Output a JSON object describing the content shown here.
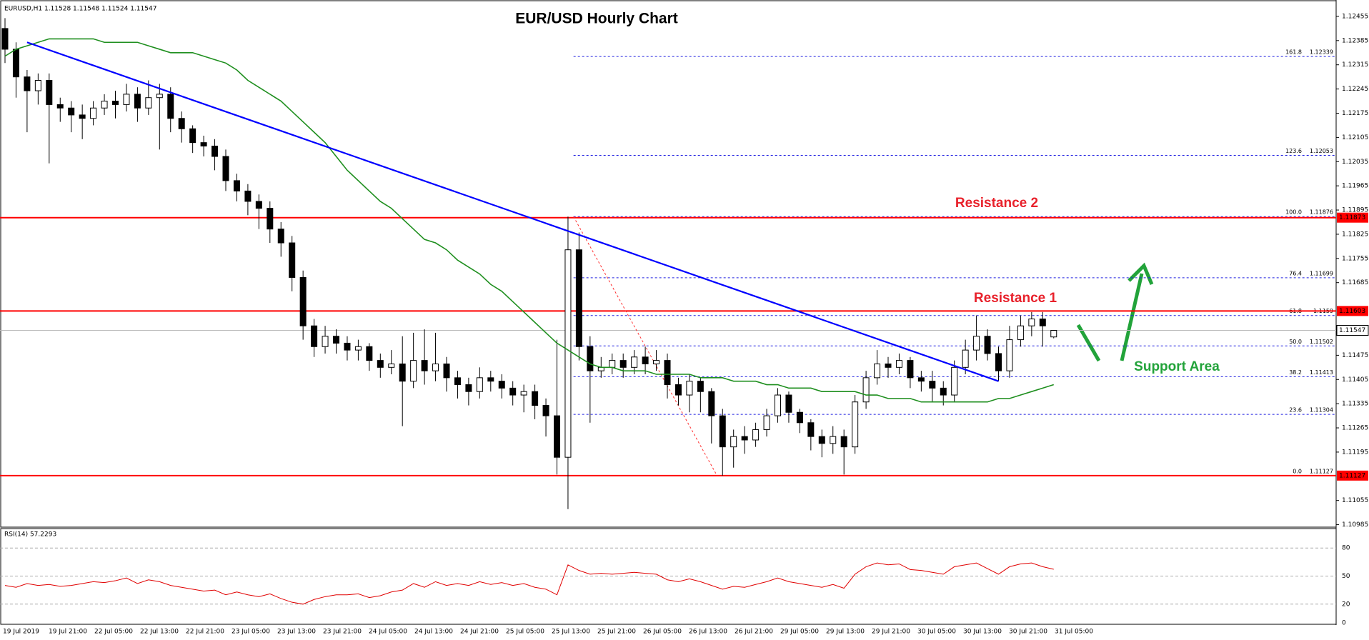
{
  "chart_data": {
    "type": "candlestick",
    "title": "EUR/USD Hourly Chart",
    "header": "EURUSD,H1  1.11528 1.11548 1.11524 1.11547",
    "ylim": [
      1.1098,
      1.1249
    ],
    "yticks": [
      1.12455,
      1.12385,
      1.12315,
      1.12245,
      1.12175,
      1.12105,
      1.12035,
      1.11965,
      1.11895,
      1.11825,
      1.11755,
      1.11685,
      1.11475,
      1.11405,
      1.11335,
      1.11265,
      1.11195,
      1.11055,
      1.10985
    ],
    "x_labels": [
      "19 Jul 2019",
      "19 Jul 21:00",
      "22 Jul 05:00",
      "22 Jul 13:00",
      "22 Jul 21:00",
      "23 Jul 05:00",
      "23 Jul 13:00",
      "23 Jul 21:00",
      "24 Jul 05:00",
      "24 Jul 13:00",
      "24 Jul 21:00",
      "25 Jul 05:00",
      "25 Jul 13:00",
      "25 Jul 21:00",
      "26 Jul 05:00",
      "26 Jul 13:00",
      "26 Jul 21:00",
      "29 Jul 05:00",
      "29 Jul 13:00",
      "29 Jul 21:00",
      "30 Jul 05:00",
      "30 Jul 13:00",
      "30 Jul 21:00",
      "31 Jul 05:00"
    ],
    "candles": [
      [
        1.1242,
        1.1245,
        1.1232,
        1.1236
      ],
      [
        1.1236,
        1.1238,
        1.1222,
        1.1228
      ],
      [
        1.1228,
        1.123,
        1.1212,
        1.1224
      ],
      [
        1.1224,
        1.1229,
        1.122,
        1.1227
      ],
      [
        1.1227,
        1.1229,
        1.1203,
        1.122
      ],
      [
        1.122,
        1.1222,
        1.1215,
        1.1219
      ],
      [
        1.1219,
        1.1221,
        1.1212,
        1.1217
      ],
      [
        1.1217,
        1.122,
        1.121,
        1.1216
      ],
      [
        1.1216,
        1.1221,
        1.1214,
        1.1219
      ],
      [
        1.1219,
        1.1223,
        1.1217,
        1.1221
      ],
      [
        1.1221,
        1.1224,
        1.1216,
        1.122
      ],
      [
        1.122,
        1.1226,
        1.1218,
        1.1223
      ],
      [
        1.1223,
        1.1225,
        1.1215,
        1.1219
      ],
      [
        1.1219,
        1.1227,
        1.1217,
        1.1222
      ],
      [
        1.1222,
        1.1226,
        1.1207,
        1.1223
      ],
      [
        1.1223,
        1.1225,
        1.1212,
        1.1216
      ],
      [
        1.1216,
        1.1218,
        1.1209,
        1.1213
      ],
      [
        1.1213,
        1.1214,
        1.1206,
        1.1209
      ],
      [
        1.1209,
        1.1211,
        1.1205,
        1.1208
      ],
      [
        1.1208,
        1.121,
        1.1201,
        1.1205
      ],
      [
        1.1205,
        1.1207,
        1.1195,
        1.1198
      ],
      [
        1.1198,
        1.12,
        1.1192,
        1.1195
      ],
      [
        1.1195,
        1.1197,
        1.1188,
        1.1192
      ],
      [
        1.1192,
        1.1194,
        1.1184,
        1.119
      ],
      [
        1.119,
        1.1192,
        1.118,
        1.1184
      ],
      [
        1.1184,
        1.1186,
        1.1176,
        1.118
      ],
      [
        1.118,
        1.1182,
        1.1166,
        1.117
      ],
      [
        1.117,
        1.1172,
        1.1152,
        1.1156
      ],
      [
        1.1156,
        1.1158,
        1.1147,
        1.115
      ],
      [
        1.115,
        1.1156,
        1.1148,
        1.1153
      ],
      [
        1.1153,
        1.1155,
        1.1148,
        1.1151
      ],
      [
        1.1151,
        1.1153,
        1.1146,
        1.1149
      ],
      [
        1.1149,
        1.1152,
        1.1146,
        1.115
      ],
      [
        1.115,
        1.1151,
        1.1143,
        1.1146
      ],
      [
        1.1146,
        1.1148,
        1.1141,
        1.1144
      ],
      [
        1.1144,
        1.1149,
        1.1142,
        1.1145
      ],
      [
        1.1145,
        1.1153,
        1.1127,
        1.114
      ],
      [
        1.114,
        1.1154,
        1.1138,
        1.1146
      ],
      [
        1.1146,
        1.1155,
        1.1139,
        1.1143
      ],
      [
        1.1143,
        1.1154,
        1.114,
        1.1145
      ],
      [
        1.1145,
        1.1147,
        1.1137,
        1.1141
      ],
      [
        1.1141,
        1.1143,
        1.1135,
        1.1139
      ],
      [
        1.1139,
        1.1141,
        1.1133,
        1.1137
      ],
      [
        1.1137,
        1.1144,
        1.1135,
        1.1141
      ],
      [
        1.1141,
        1.1143,
        1.1137,
        1.114
      ],
      [
        1.114,
        1.1142,
        1.1135,
        1.1138
      ],
      [
        1.1138,
        1.114,
        1.1133,
        1.1136
      ],
      [
        1.1136,
        1.1139,
        1.1131,
        1.1137
      ],
      [
        1.1137,
        1.1139,
        1.1129,
        1.1133
      ],
      [
        1.1133,
        1.1135,
        1.1124,
        1.113
      ],
      [
        1.113,
        1.1152,
        1.1113,
        1.1118
      ],
      [
        1.1118,
        1.11876,
        1.1103,
        1.1178
      ],
      [
        1.1178,
        1.1183,
        1.1146,
        1.115
      ],
      [
        1.115,
        1.1153,
        1.1128,
        1.1143
      ],
      [
        1.1143,
        1.1147,
        1.1141,
        1.1144
      ],
      [
        1.1144,
        1.1148,
        1.1142,
        1.1146
      ],
      [
        1.1146,
        1.1148,
        1.1141,
        1.1144
      ],
      [
        1.1144,
        1.1149,
        1.1142,
        1.1147
      ],
      [
        1.1147,
        1.115,
        1.1142,
        1.1145
      ],
      [
        1.1145,
        1.1149,
        1.1143,
        1.1146
      ],
      [
        1.1146,
        1.1148,
        1.1135,
        1.1139
      ],
      [
        1.1139,
        1.1141,
        1.1133,
        1.1136
      ],
      [
        1.1136,
        1.1142,
        1.1131,
        1.114
      ],
      [
        1.114,
        1.1141,
        1.1131,
        1.1137
      ],
      [
        1.1137,
        1.1138,
        1.1122,
        1.113
      ],
      [
        1.113,
        1.1132,
        1.11127,
        1.1121
      ],
      [
        1.1121,
        1.1126,
        1.1115,
        1.1124
      ],
      [
        1.1124,
        1.1127,
        1.1119,
        1.1123
      ],
      [
        1.1123,
        1.1128,
        1.1121,
        1.1126
      ],
      [
        1.1126,
        1.1132,
        1.1124,
        1.113
      ],
      [
        1.113,
        1.1138,
        1.1128,
        1.1136
      ],
      [
        1.1136,
        1.1137,
        1.1128,
        1.1131
      ],
      [
        1.1131,
        1.1132,
        1.1125,
        1.1128
      ],
      [
        1.1128,
        1.1129,
        1.112,
        1.1124
      ],
      [
        1.1124,
        1.1126,
        1.1118,
        1.1122
      ],
      [
        1.1122,
        1.1127,
        1.1119,
        1.1124
      ],
      [
        1.1124,
        1.1126,
        1.1113,
        1.1121
      ],
      [
        1.1121,
        1.1136,
        1.1119,
        1.1134
      ],
      [
        1.1134,
        1.1143,
        1.1132,
        1.1141
      ],
      [
        1.1141,
        1.1149,
        1.1139,
        1.1145
      ],
      [
        1.1145,
        1.1147,
        1.1141,
        1.1144
      ],
      [
        1.1144,
        1.1148,
        1.1142,
        1.1146
      ],
      [
        1.1146,
        1.1147,
        1.1138,
        1.1141
      ],
      [
        1.1141,
        1.1143,
        1.1137,
        1.114
      ],
      [
        1.114,
        1.1143,
        1.1134,
        1.1138
      ],
      [
        1.1138,
        1.114,
        1.1133,
        1.1136
      ],
      [
        1.1136,
        1.1146,
        1.1134,
        1.1144
      ],
      [
        1.1144,
        1.1152,
        1.1142,
        1.1149
      ],
      [
        1.1149,
        1.1159,
        1.1146,
        1.1153
      ],
      [
        1.1153,
        1.1155,
        1.1146,
        1.1148
      ],
      [
        1.1148,
        1.115,
        1.114,
        1.1143
      ],
      [
        1.1143,
        1.1156,
        1.1141,
        1.1152
      ],
      [
        1.1152,
        1.1159,
        1.115,
        1.1156
      ],
      [
        1.1156,
        1.116,
        1.1153,
        1.1158
      ],
      [
        1.1158,
        1.116,
        1.115,
        1.1156
      ],
      [
        1.11528,
        1.11548,
        1.11524,
        1.11547
      ]
    ],
    "ma_color": "#1f8f1f",
    "ma_values": [
      1.1234,
      1.1236,
      1.1237,
      1.1238,
      1.1239,
      1.1239,
      1.1239,
      1.1239,
      1.1239,
      1.1238,
      1.1238,
      1.1238,
      1.1238,
      1.1237,
      1.1236,
      1.1235,
      1.1235,
      1.1235,
      1.1234,
      1.1233,
      1.1232,
      1.123,
      1.1227,
      1.1225,
      1.1223,
      1.1221,
      1.1218,
      1.1215,
      1.1212,
      1.1209,
      1.1205,
      1.1201,
      1.1198,
      1.1195,
      1.1192,
      1.119,
      1.1187,
      1.1184,
      1.1181,
      1.118,
      1.1178,
      1.1175,
      1.1173,
      1.1171,
      1.1168,
      1.1166,
      1.1163,
      1.116,
      1.1157,
      1.1154,
      1.1151,
      1.1149,
      1.1147,
      1.1145,
      1.1144,
      1.1144,
      1.1143,
      1.1143,
      1.1143,
      1.1142,
      1.1142,
      1.1142,
      1.1142,
      1.1141,
      1.1141,
      1.1141,
      1.114,
      1.114,
      1.114,
      1.1139,
      1.1139,
      1.1138,
      1.1138,
      1.1138,
      1.1137,
      1.1137,
      1.1137,
      1.1137,
      1.1136,
      1.1136,
      1.1135,
      1.1135,
      1.1135,
      1.1134,
      1.1134,
      1.1134,
      1.1134,
      1.1134,
      1.1134,
      1.1134,
      1.1135,
      1.1135,
      1.1136,
      1.1137,
      1.1138,
      1.1139
    ],
    "trendline": {
      "x": [
        2,
        90
      ],
      "y": [
        1.1238,
        1.114
      ],
      "color": "#0000ff"
    },
    "fib_line": {
      "x": [
        51.5,
        64.5
      ],
      "y": [
        1.11876,
        1.11127
      ],
      "color": "#ff3030"
    },
    "fib_color": "#2020e0",
    "fib_levels": [
      {
        "level": "161.8",
        "value": 1.12339
      },
      {
        "level": "123.6",
        "value": 1.12053
      },
      {
        "level": "100.0",
        "value": 1.11876
      },
      {
        "level": "76.4",
        "value": 1.11699
      },
      {
        "level": "61.8",
        "value": 1.1159
      },
      {
        "level": "50.0",
        "value": 1.11502
      },
      {
        "level": "38.2",
        "value": 1.11413
      },
      {
        "level": "23.6",
        "value": 1.11304
      },
      {
        "level": "0.0",
        "value": 1.11127
      }
    ],
    "red_lines": [
      1.11873,
      1.11603,
      1.11127
    ],
    "red_color": "#ff0000",
    "current_price": 1.11547,
    "annotations": [
      {
        "text": "Resistance 2",
        "color": "#e8212b"
      },
      {
        "text": "Resistance 1",
        "color": "#e8212b"
      },
      {
        "text": "Support Area",
        "color": "#22a33a"
      }
    ],
    "rsi": {
      "title": "RSI(14) 57.2293",
      "color": "#e00000",
      "ylim": [
        0,
        100
      ],
      "yticks": [
        80,
        50,
        20,
        0
      ],
      "values": [
        40,
        38,
        42,
        40,
        41,
        39,
        40,
        42,
        44,
        43,
        45,
        48,
        42,
        46,
        44,
        40,
        38,
        36,
        34,
        35,
        30,
        33,
        30,
        28,
        31,
        26,
        22,
        20,
        25,
        28,
        30,
        30,
        31,
        27,
        29,
        33,
        35,
        42,
        38,
        44,
        40,
        42,
        40,
        44,
        41,
        43,
        40,
        42,
        38,
        36,
        30,
        62,
        56,
        52,
        53,
        52,
        53,
        54,
        53,
        52,
        46,
        44,
        47,
        44,
        40,
        36,
        39,
        38,
        41,
        44,
        48,
        44,
        42,
        40,
        38,
        41,
        37,
        52,
        60,
        64,
        62,
        63,
        57,
        56,
        54,
        52,
        60,
        62,
        64,
        58,
        52,
        60,
        63,
        64,
        60,
        57.2293
      ]
    }
  }
}
